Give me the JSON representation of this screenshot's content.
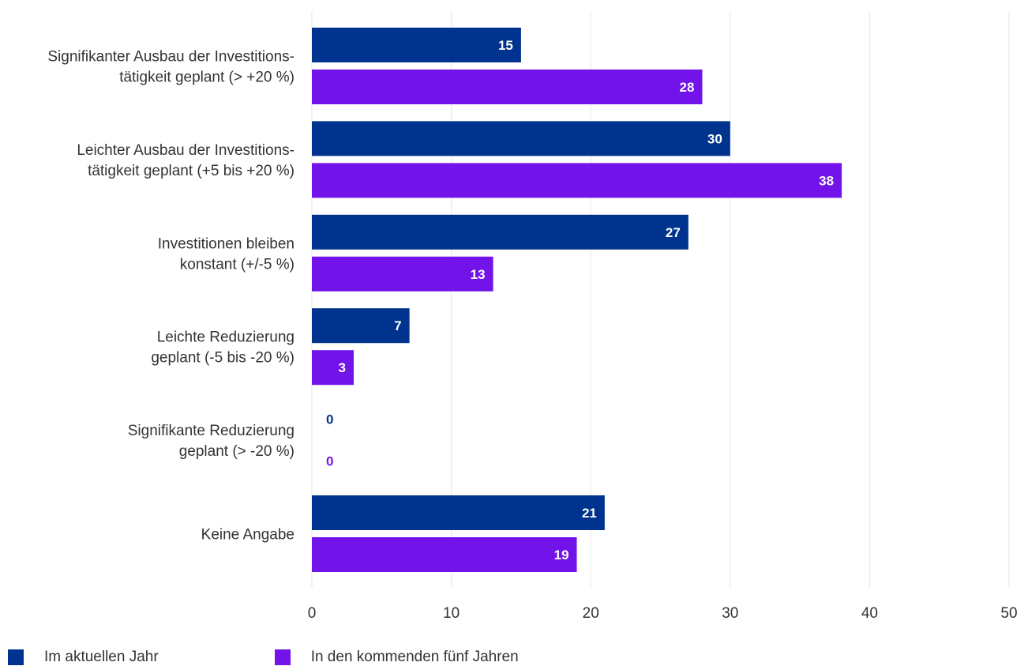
{
  "chart_data": {
    "type": "bar",
    "orientation": "horizontal",
    "categories": [
      [
        "Signifikanter Ausbau der Investitions-",
        "tätigkeit geplant (> +20 %)"
      ],
      [
        "Leichter Ausbau der Investitions-",
        "tätigkeit geplant (+5 bis +20 %)"
      ],
      [
        "Investitionen bleiben",
        "konstant (+/-5 %)"
      ],
      [
        "Leichte Reduzierung",
        "geplant (-5 bis -20 %)"
      ],
      [
        "Signifikante Reduzierung",
        "geplant (> -20 %)"
      ],
      [
        "Keine Angabe"
      ]
    ],
    "series": [
      {
        "name": "Im aktuellen Jahr",
        "color": "#00338D",
        "values": [
          15,
          30,
          27,
          7,
          0,
          21
        ]
      },
      {
        "name": "In den kommenden fünf Jahren",
        "color": "#7213EA",
        "values": [
          28,
          38,
          13,
          3,
          0,
          19
        ]
      }
    ],
    "xlim": [
      0,
      50
    ],
    "xticks": [
      0,
      10,
      20,
      30,
      40,
      50
    ],
    "grid": true,
    "legend_position": "bottom-left",
    "title": "",
    "xlabel": "",
    "ylabel": ""
  },
  "legend": {
    "item1": "Im aktuellen Jahr",
    "item2": "In den kommenden fünf Jahren"
  }
}
